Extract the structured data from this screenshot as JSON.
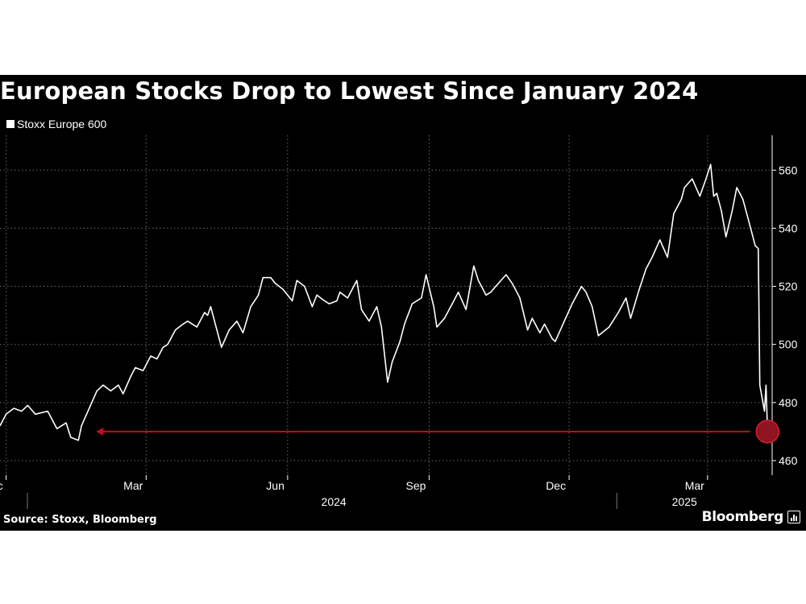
{
  "title": "European Stocks Drop to Lowest Since January 2024",
  "source": "Source: Stoxx, Bloomberg",
  "brand": "Bloomberg",
  "brand_icon": "bar-chart-icon",
  "colors": {
    "background": "#000000",
    "line": "#ffffff",
    "grid": "#6b6b6b",
    "arrow": "#c0111f",
    "marker": "#8e1420"
  },
  "chart_data": {
    "type": "line",
    "title": "European Stocks Drop to Lowest Since January 2024",
    "legend": "top-left",
    "grid": true,
    "series": [
      {
        "name": "Stoxx Europe 600",
        "points": [
          [
            "2023-11-27",
            472
          ],
          [
            "2023-12-01",
            476
          ],
          [
            "2023-12-06",
            478
          ],
          [
            "2023-12-11",
            477
          ],
          [
            "2023-12-15",
            479
          ],
          [
            "2023-12-20",
            476
          ],
          [
            "2023-12-28",
            477
          ],
          [
            "2024-01-03",
            471
          ],
          [
            "2024-01-09",
            473
          ],
          [
            "2024-01-12",
            468
          ],
          [
            "2024-01-17",
            467
          ],
          [
            "2024-01-19",
            472
          ],
          [
            "2024-01-24",
            478
          ],
          [
            "2024-01-29",
            484
          ],
          [
            "2024-02-02",
            486
          ],
          [
            "2024-02-07",
            484
          ],
          [
            "2024-02-12",
            486
          ],
          [
            "2024-02-15",
            483
          ],
          [
            "2024-02-20",
            489
          ],
          [
            "2024-02-23",
            492
          ],
          [
            "2024-02-28",
            491
          ],
          [
            "2024-03-04",
            496
          ],
          [
            "2024-03-08",
            495
          ],
          [
            "2024-03-12",
            499
          ],
          [
            "2024-03-15",
            500
          ],
          [
            "2024-03-20",
            505
          ],
          [
            "2024-03-25",
            507
          ],
          [
            "2024-03-28",
            508
          ],
          [
            "2024-04-03",
            506
          ],
          [
            "2024-04-08",
            511
          ],
          [
            "2024-04-10",
            510
          ],
          [
            "2024-04-12",
            513
          ],
          [
            "2024-04-17",
            503
          ],
          [
            "2024-04-19",
            499
          ],
          [
            "2024-04-24",
            505
          ],
          [
            "2024-04-29",
            508
          ],
          [
            "2024-05-03",
            504
          ],
          [
            "2024-05-08",
            513
          ],
          [
            "2024-05-13",
            517
          ],
          [
            "2024-05-16",
            523
          ],
          [
            "2024-05-21",
            523
          ],
          [
            "2024-05-24",
            521
          ],
          [
            "2024-05-29",
            519
          ],
          [
            "2024-06-04",
            515
          ],
          [
            "2024-06-07",
            522
          ],
          [
            "2024-06-12",
            520
          ],
          [
            "2024-06-17",
            513
          ],
          [
            "2024-06-20",
            517
          ],
          [
            "2024-06-25",
            515
          ],
          [
            "2024-06-28",
            514
          ],
          [
            "2024-07-03",
            515
          ],
          [
            "2024-07-05",
            518
          ],
          [
            "2024-07-10",
            516
          ],
          [
            "2024-07-16",
            522
          ],
          [
            "2024-07-19",
            512
          ],
          [
            "2024-07-24",
            508
          ],
          [
            "2024-07-29",
            513
          ],
          [
            "2024-08-01",
            506
          ],
          [
            "2024-08-05",
            487
          ],
          [
            "2024-08-08",
            494
          ],
          [
            "2024-08-13",
            501
          ],
          [
            "2024-08-16",
            507
          ],
          [
            "2024-08-21",
            514
          ],
          [
            "2024-08-27",
            516
          ],
          [
            "2024-08-30",
            524
          ],
          [
            "2024-09-04",
            513
          ],
          [
            "2024-09-06",
            506
          ],
          [
            "2024-09-11",
            509
          ],
          [
            "2024-09-16",
            514
          ],
          [
            "2024-09-20",
            518
          ],
          [
            "2024-09-25",
            512
          ],
          [
            "2024-09-30",
            527
          ],
          [
            "2024-10-03",
            522
          ],
          [
            "2024-10-08",
            517
          ],
          [
            "2024-10-11",
            518
          ],
          [
            "2024-10-16",
            521
          ],
          [
            "2024-10-21",
            524
          ],
          [
            "2024-10-25",
            521
          ],
          [
            "2024-10-30",
            516
          ],
          [
            "2024-11-04",
            505
          ],
          [
            "2024-11-07",
            509
          ],
          [
            "2024-11-12",
            504
          ],
          [
            "2024-11-15",
            507
          ],
          [
            "2024-11-20",
            502
          ],
          [
            "2024-11-22",
            501
          ],
          [
            "2024-11-27",
            507
          ],
          [
            "2024-12-03",
            514
          ],
          [
            "2024-12-09",
            520
          ],
          [
            "2024-12-12",
            518
          ],
          [
            "2024-12-16",
            513
          ],
          [
            "2024-12-20",
            503
          ],
          [
            "2024-12-27",
            506
          ],
          [
            "2025-01-02",
            511
          ],
          [
            "2025-01-07",
            516
          ],
          [
            "2025-01-10",
            509
          ],
          [
            "2025-01-15",
            518
          ],
          [
            "2025-01-20",
            526
          ],
          [
            "2025-01-24",
            530
          ],
          [
            "2025-01-29",
            536
          ],
          [
            "2025-02-03",
            530
          ],
          [
            "2025-02-07",
            545
          ],
          [
            "2025-02-12",
            550
          ],
          [
            "2025-02-14",
            554
          ],
          [
            "2025-02-19",
            557
          ],
          [
            "2025-02-24",
            551
          ],
          [
            "2025-02-28",
            557
          ],
          [
            "2025-03-03",
            562
          ],
          [
            "2025-03-05",
            551
          ],
          [
            "2025-03-07",
            552
          ],
          [
            "2025-03-10",
            546
          ],
          [
            "2025-03-13",
            537
          ],
          [
            "2025-03-17",
            546
          ],
          [
            "2025-03-20",
            554
          ],
          [
            "2025-03-24",
            550
          ],
          [
            "2025-03-28",
            542
          ],
          [
            "2025-04-01",
            534
          ],
          [
            "2025-04-03",
            533
          ],
          [
            "2025-04-04",
            486
          ],
          [
            "2025-04-07",
            477
          ],
          [
            "2025-04-08",
            486
          ],
          [
            "2025-04-09",
            470
          ]
        ]
      }
    ],
    "y_ticks": [
      460,
      480,
      500,
      520,
      540,
      560
    ],
    "ylim": [
      455,
      572
    ],
    "xlim": [
      "2023-11-27",
      "2025-04-12"
    ],
    "x_ticks": [
      {
        "date": "2023-12-01",
        "label": "Dec"
      },
      {
        "date": "2024-03-01",
        "label": "Mar"
      },
      {
        "date": "2024-06-01",
        "label": "Jun"
      },
      {
        "date": "2024-09-01",
        "label": "Sep"
      },
      {
        "date": "2024-12-01",
        "label": "Dec"
      },
      {
        "date": "2025-03-01",
        "label": "Mar"
      }
    ],
    "year_labels": [
      {
        "date": "2024-07-01",
        "label": "2024"
      },
      {
        "date": "2025-02-14",
        "label": "2025"
      }
    ],
    "annotation": {
      "type": "arrow",
      "from": [
        "2025-04-09",
        470
      ],
      "to": [
        "2024-01-17",
        470
      ],
      "note": "arrow back to January 2024 level"
    }
  }
}
